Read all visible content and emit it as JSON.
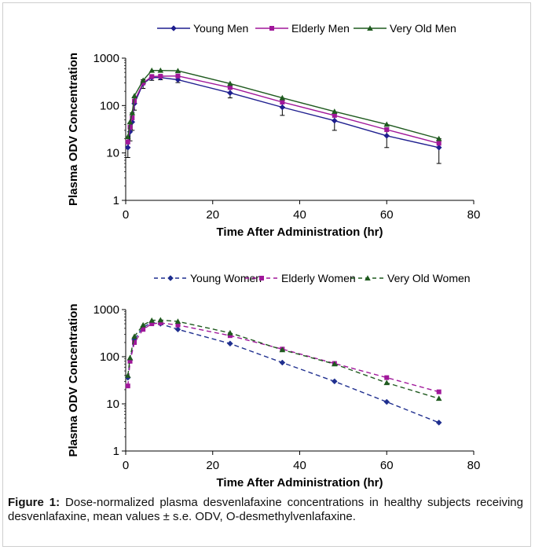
{
  "chart_data": [
    {
      "type": "line",
      "title": "",
      "xlabel": "Time After Administration (hr)",
      "ylabel": "Plasma ODV Concentration",
      "xlim": [
        0,
        80
      ],
      "ylim": [
        1,
        1000
      ],
      "yscale": "log",
      "x_ticks": [
        "0",
        "20",
        "40",
        "60",
        "80"
      ],
      "y_ticks": [
        "1",
        "10",
        "100",
        "1000"
      ],
      "grid": false,
      "legend_position": "top",
      "line_style": "solid",
      "series": [
        {
          "name": "Young Men",
          "color": "#1f1f8f",
          "marker": "diamond",
          "x": [
            0.5,
            1,
            1.5,
            2,
            4,
            6,
            8,
            12,
            24,
            36,
            48,
            60,
            72
          ],
          "y": [
            13,
            28,
            45,
            110,
            290,
            390,
            390,
            350,
            185,
            92,
            48,
            23,
            13
          ],
          "err_low": [
            5,
            10,
            15,
            30,
            60,
            50,
            40,
            45,
            40,
            30,
            18,
            10,
            7
          ],
          "err_high": [
            8,
            15,
            25,
            40,
            60,
            50,
            40,
            45,
            40,
            30,
            18,
            10,
            7
          ]
        },
        {
          "name": "Elderly Men",
          "color": "#a0179a",
          "marker": "square",
          "x": [
            0.5,
            1,
            1.5,
            2,
            4,
            6,
            8,
            12,
            24,
            36,
            48,
            60,
            72
          ],
          "y": [
            17,
            35,
            55,
            125,
            300,
            410,
            415,
            420,
            240,
            118,
            62,
            31,
            16
          ],
          "err_low": [],
          "err_high": []
        },
        {
          "name": "Very Old Men",
          "color": "#1f5a1f",
          "marker": "triangle",
          "x": [
            0.5,
            1,
            1.5,
            2,
            4,
            6,
            8,
            12,
            24,
            36,
            48,
            60,
            72
          ],
          "y": [
            22,
            45,
            70,
            160,
            340,
            550,
            550,
            540,
            290,
            145,
            75,
            40,
            20
          ],
          "err_low": [],
          "err_high": []
        }
      ]
    },
    {
      "type": "line",
      "title": "",
      "xlabel": "Time After Administration (hr)",
      "ylabel": "Plasma ODV Concentration",
      "xlim": [
        0,
        80
      ],
      "ylim": [
        1,
        1000
      ],
      "yscale": "log",
      "x_ticks": [
        "0",
        "20",
        "40",
        "60",
        "80"
      ],
      "y_ticks": [
        "1",
        "10",
        "100",
        "1000"
      ],
      "grid": false,
      "legend_position": "top",
      "line_style": "dashed",
      "series": [
        {
          "name": "Young Women",
          "color": "#1f2f8f",
          "marker": "diamond",
          "x": [
            0.5,
            1,
            2,
            4,
            6,
            8,
            12,
            24,
            36,
            48,
            60,
            72
          ],
          "y": [
            36,
            85,
            230,
            430,
            520,
            500,
            380,
            190,
            75,
            30,
            11,
            4
          ],
          "err_low": [],
          "err_high": []
        },
        {
          "name": "Elderly Women",
          "color": "#a0179a",
          "marker": "square",
          "x": [
            0.5,
            1,
            2,
            4,
            6,
            8,
            12,
            24,
            36,
            48,
            60,
            72
          ],
          "y": [
            24,
            80,
            200,
            380,
            500,
            520,
            470,
            280,
            145,
            72,
            36,
            18
          ],
          "err_low": [],
          "err_high": []
        },
        {
          "name": "Very Old Women",
          "color": "#1f5a1f",
          "marker": "triangle",
          "x": [
            0.5,
            1,
            2,
            4,
            6,
            8,
            12,
            24,
            36,
            48,
            60,
            72
          ],
          "y": [
            40,
            95,
            270,
            470,
            590,
            600,
            560,
            320,
            140,
            70,
            28,
            13
          ],
          "err_low": [],
          "err_high": []
        }
      ]
    }
  ],
  "caption": {
    "label": "Figure 1:",
    "text": " Dose-normalized plasma desvenlafaxine concentrations in healthy subjects receiving desvenlafaxine, mean values ± s.e. ODV, O-desmethylvenlafaxine."
  }
}
